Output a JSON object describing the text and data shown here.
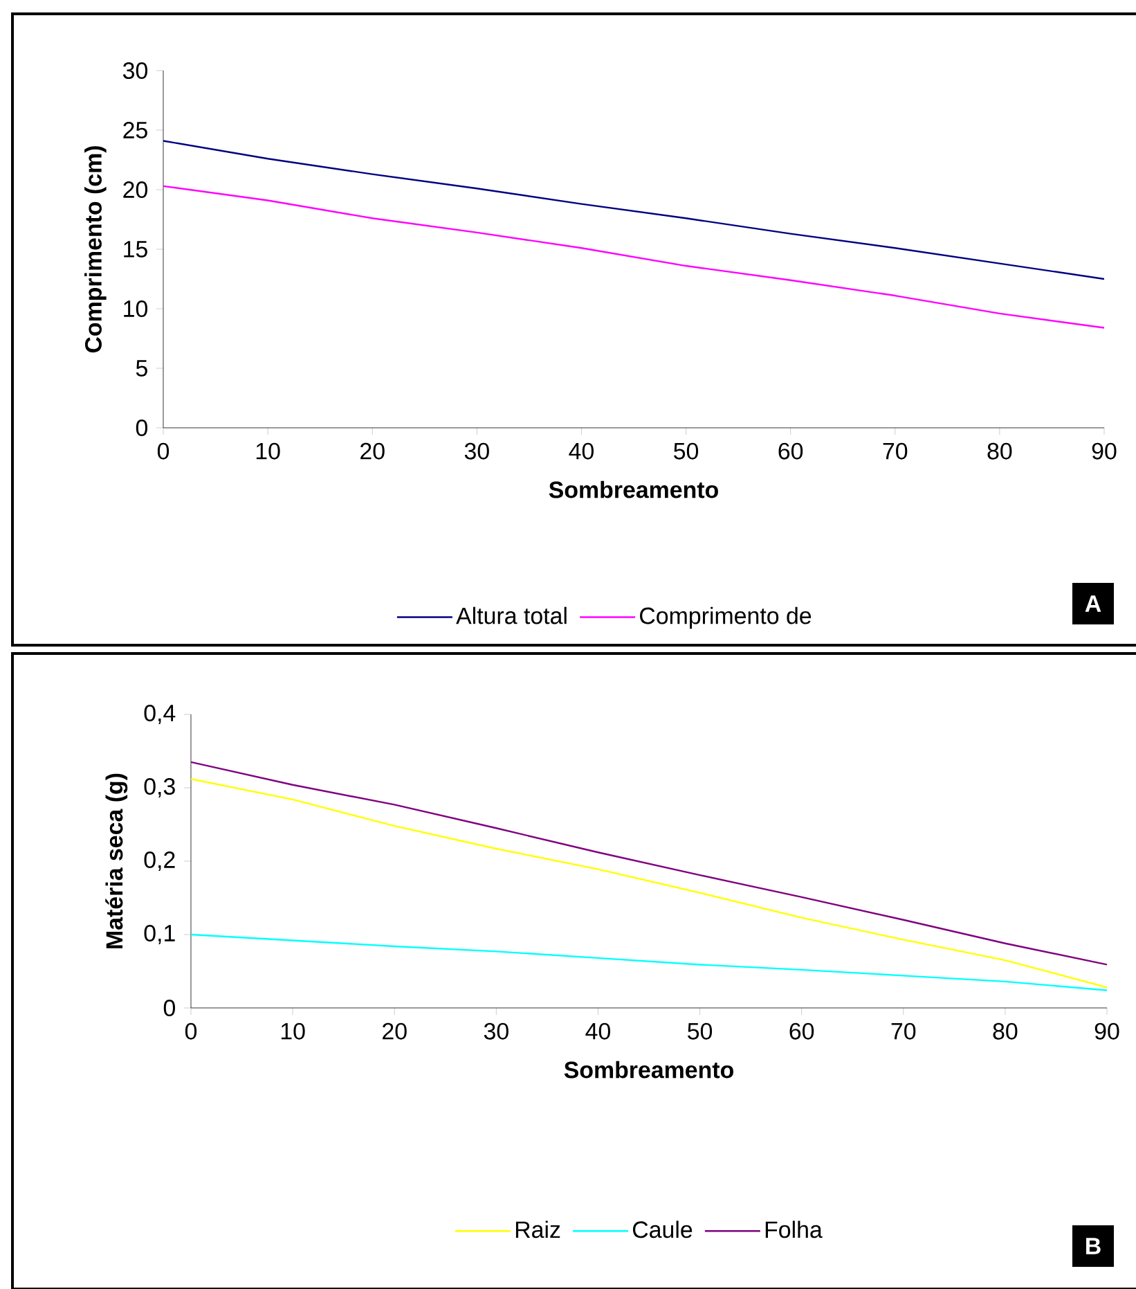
{
  "chart_data": [
    {
      "type": "line",
      "xlabel": "Sombreamento",
      "ylabel": "Comprimento (cm)",
      "x": [
        0,
        10,
        20,
        30,
        40,
        50,
        60,
        70,
        80,
        90
      ],
      "series": [
        {
          "name": "Altura total",
          "color": "#000080",
          "values": [
            24.1,
            22.6,
            21.3,
            20.1,
            18.8,
            17.6,
            16.3,
            15.1,
            13.8,
            12.5
          ]
        },
        {
          "name": "Comprimento de",
          "color": "#ff00ff",
          "values": [
            20.3,
            19.1,
            17.6,
            16.4,
            15.1,
            13.6,
            12.4,
            11.1,
            9.6,
            8.4
          ]
        }
      ],
      "xlim": [
        0,
        90
      ],
      "xticks": [
        0,
        10,
        20,
        30,
        40,
        50,
        60,
        70,
        80,
        90
      ],
      "ylim": [
        0,
        30
      ],
      "yticks": [
        0,
        5,
        10,
        15,
        20,
        25,
        30
      ],
      "legend": "bottom",
      "annotations": [
        "A"
      ]
    },
    {
      "type": "line",
      "xlabel": "Sombreamento",
      "ylabel": "Matéria seca (g)",
      "x": [
        0,
        10,
        20,
        30,
        40,
        50,
        60,
        70,
        80,
        90
      ],
      "series": [
        {
          "name": "Raiz",
          "color": "#ffff00",
          "values": [
            0.312,
            0.284,
            0.248,
            0.217,
            0.189,
            0.157,
            0.123,
            0.093,
            0.065,
            0.028
          ]
        },
        {
          "name": "Caule",
          "color": "#00ffff",
          "values": [
            0.1,
            0.092,
            0.084,
            0.077,
            0.068,
            0.059,
            0.052,
            0.044,
            0.036,
            0.024
          ]
        },
        {
          "name": "Folha",
          "color": "#800080",
          "values": [
            0.335,
            0.304,
            0.277,
            0.245,
            0.212,
            0.181,
            0.151,
            0.12,
            0.088,
            0.059
          ]
        }
      ],
      "xlim": [
        0,
        90
      ],
      "xticks": [
        0,
        10,
        20,
        30,
        40,
        50,
        60,
        70,
        80,
        90
      ],
      "ylim": [
        0,
        0.4
      ],
      "yticks": [
        0,
        {
          "value": 0.1,
          "label": "0,1"
        },
        {
          "value": 0.2,
          "label": "0,2"
        },
        {
          "value": 0.3,
          "label": "0,3"
        },
        {
          "value": 0.4,
          "label": "0,4"
        }
      ],
      "legend": "bottom",
      "annotations": [
        "B"
      ]
    }
  ]
}
